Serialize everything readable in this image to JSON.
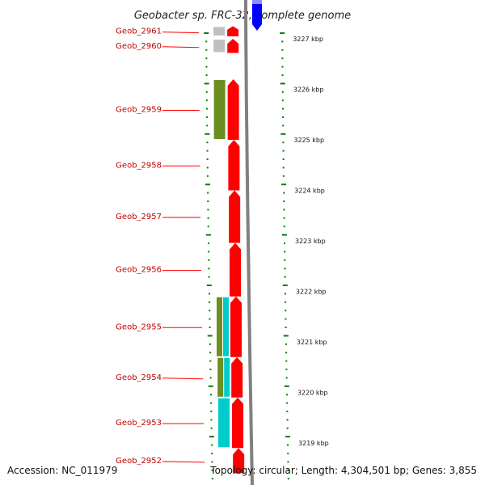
{
  "title": "Geobacter sp. FRC-32, complete genome",
  "footer": {
    "accession": "Accession: NC_011979",
    "topology": "Topology: circular; Length: 4,304,501 bp; Genes: 3,855"
  },
  "scale": {
    "unit": "kbp",
    "ticks": [
      {
        "label": "3227 kbp",
        "kbp": 3227
      },
      {
        "label": "3226 kbp",
        "kbp": 3226
      },
      {
        "label": "3225 kbp",
        "kbp": 3225
      },
      {
        "label": "3224 kbp",
        "kbp": 3224
      },
      {
        "label": "3223 kbp",
        "kbp": 3223
      },
      {
        "label": "3222 kbp",
        "kbp": 3222
      },
      {
        "label": "3221 kbp",
        "kbp": 3221
      },
      {
        "label": "3220 kbp",
        "kbp": 3220
      },
      {
        "label": "3219 kbp",
        "kbp": 3219
      }
    ]
  },
  "genes": [
    {
      "name": "Geob_2961",
      "start_kbp": 3227.25,
      "end_kbp": 3227.05,
      "strand": "-",
      "color": "#ff0000",
      "cog_colors": [
        "#c0c0c0"
      ]
    },
    {
      "name": "Geob_2960",
      "start_kbp": 3227.0,
      "end_kbp": 3226.72,
      "strand": "-",
      "color": "#ff0000",
      "cog_colors": [
        "#c0c0c0"
      ]
    },
    {
      "name": "Geob_2959",
      "start_kbp": 3226.2,
      "end_kbp": 3225.0,
      "strand": "-",
      "color": "#ff0000",
      "cog_colors": [
        "#6b8e23"
      ]
    },
    {
      "name": "Geob_2958",
      "start_kbp": 3225.0,
      "end_kbp": 3224.0,
      "strand": "-",
      "color": "#ff0000",
      "cog_colors": []
    },
    {
      "name": "Geob_2957",
      "start_kbp": 3224.0,
      "end_kbp": 3222.96,
      "strand": "-",
      "color": "#ff0000",
      "cog_colors": []
    },
    {
      "name": "Geob_2956",
      "start_kbp": 3222.96,
      "end_kbp": 3221.9,
      "strand": "-",
      "color": "#ff0000",
      "cog_colors": []
    },
    {
      "name": "Geob_2955",
      "start_kbp": 3221.9,
      "end_kbp": 3220.7,
      "strand": "-",
      "color": "#ff0000",
      "cog_colors": [
        "#6b8e23",
        "#00cccc"
      ]
    },
    {
      "name": "Geob_2954",
      "start_kbp": 3220.7,
      "end_kbp": 3219.9,
      "strand": "-",
      "color": "#ff0000",
      "cog_colors": [
        "#6b8e23",
        "#00cccc"
      ]
    },
    {
      "name": "Geob_2953",
      "start_kbp": 3219.9,
      "end_kbp": 3218.9,
      "strand": "-",
      "color": "#ff0000",
      "cog_colors": [
        "#00cccc"
      ]
    },
    {
      "name": "Geob_2952",
      "start_kbp": 3218.9,
      "end_kbp": 3218.4,
      "strand": "-",
      "color": "#ff0000",
      "cog_colors": []
    }
  ],
  "partial_gene_top": {
    "strand": "+",
    "color": "#0000ff"
  },
  "colors": {
    "backbone": "#808080",
    "tick_dots": "#008000",
    "label_line": "#ff0000"
  }
}
